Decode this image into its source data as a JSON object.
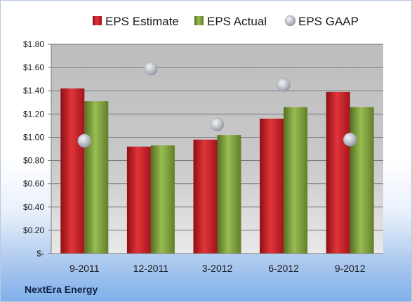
{
  "company_label": "NextEra Energy",
  "colors": {
    "estimate": "#c41e24",
    "actual": "#7ea43c",
    "gaap": "#b8bcc4"
  },
  "chart_data": {
    "type": "bar",
    "categories": [
      "9-2011",
      "12-2011",
      "3-2012",
      "6-2012",
      "9-2012"
    ],
    "series": [
      {
        "name": "EPS Estimate",
        "kind": "bar",
        "values": [
          1.42,
          0.92,
          0.98,
          1.16,
          1.39
        ]
      },
      {
        "name": "EPS Actual",
        "kind": "bar",
        "values": [
          1.31,
          0.93,
          1.02,
          1.26,
          1.26
        ]
      },
      {
        "name": "EPS GAAP",
        "kind": "marker",
        "values": [
          0.97,
          1.59,
          1.11,
          1.45,
          0.98
        ]
      }
    ],
    "ylim": [
      0,
      1.8
    ],
    "yticks": [
      0,
      0.2,
      0.4,
      0.6,
      0.8,
      1.0,
      1.2,
      1.4,
      1.6,
      1.8
    ],
    "ytick_labels": [
      "$-",
      "$0.20",
      "$0.40",
      "$0.60",
      "$0.80",
      "$1.00",
      "$1.20",
      "$1.40",
      "$1.60",
      "$1.80"
    ],
    "grid": true,
    "legend_position": "top"
  }
}
